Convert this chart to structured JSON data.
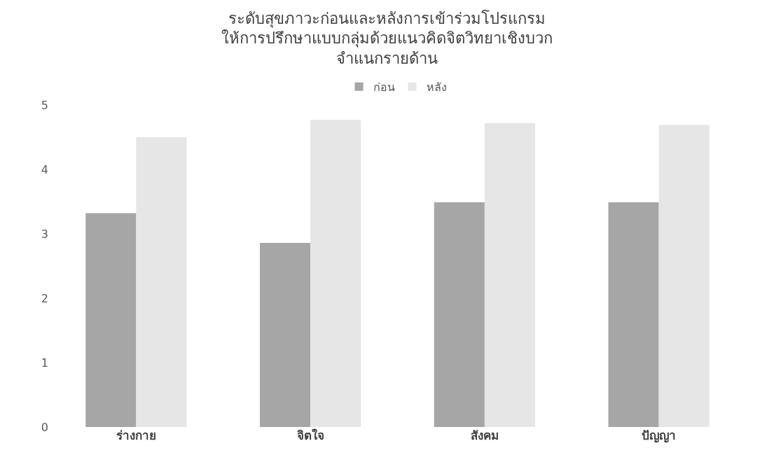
{
  "chart_data": {
    "type": "bar",
    "title": "ระดับสุขภาวะก่อนและหลังการเข้าร่วมโปรแกรม\nให้การปรึกษาแบบกลุ่มด้วยแนวคิดจิตวิทยาเชิงบวก\nจำแนกรายด้าน",
    "categories": [
      "ร่างกาย",
      "จิตใจ",
      "สังคม",
      "ปัญญา"
    ],
    "series": [
      {
        "name": "ก่อน",
        "color": "#a6a6a6",
        "values": [
          3.32,
          2.86,
          3.49,
          3.49
        ]
      },
      {
        "name": "หลัง",
        "color": "#e6e6e6",
        "values": [
          4.5,
          4.77,
          4.72,
          4.69
        ]
      }
    ],
    "ylim": [
      0,
      5
    ],
    "yticks": [
      0,
      1,
      2,
      3,
      4,
      5
    ],
    "legend": "top"
  }
}
